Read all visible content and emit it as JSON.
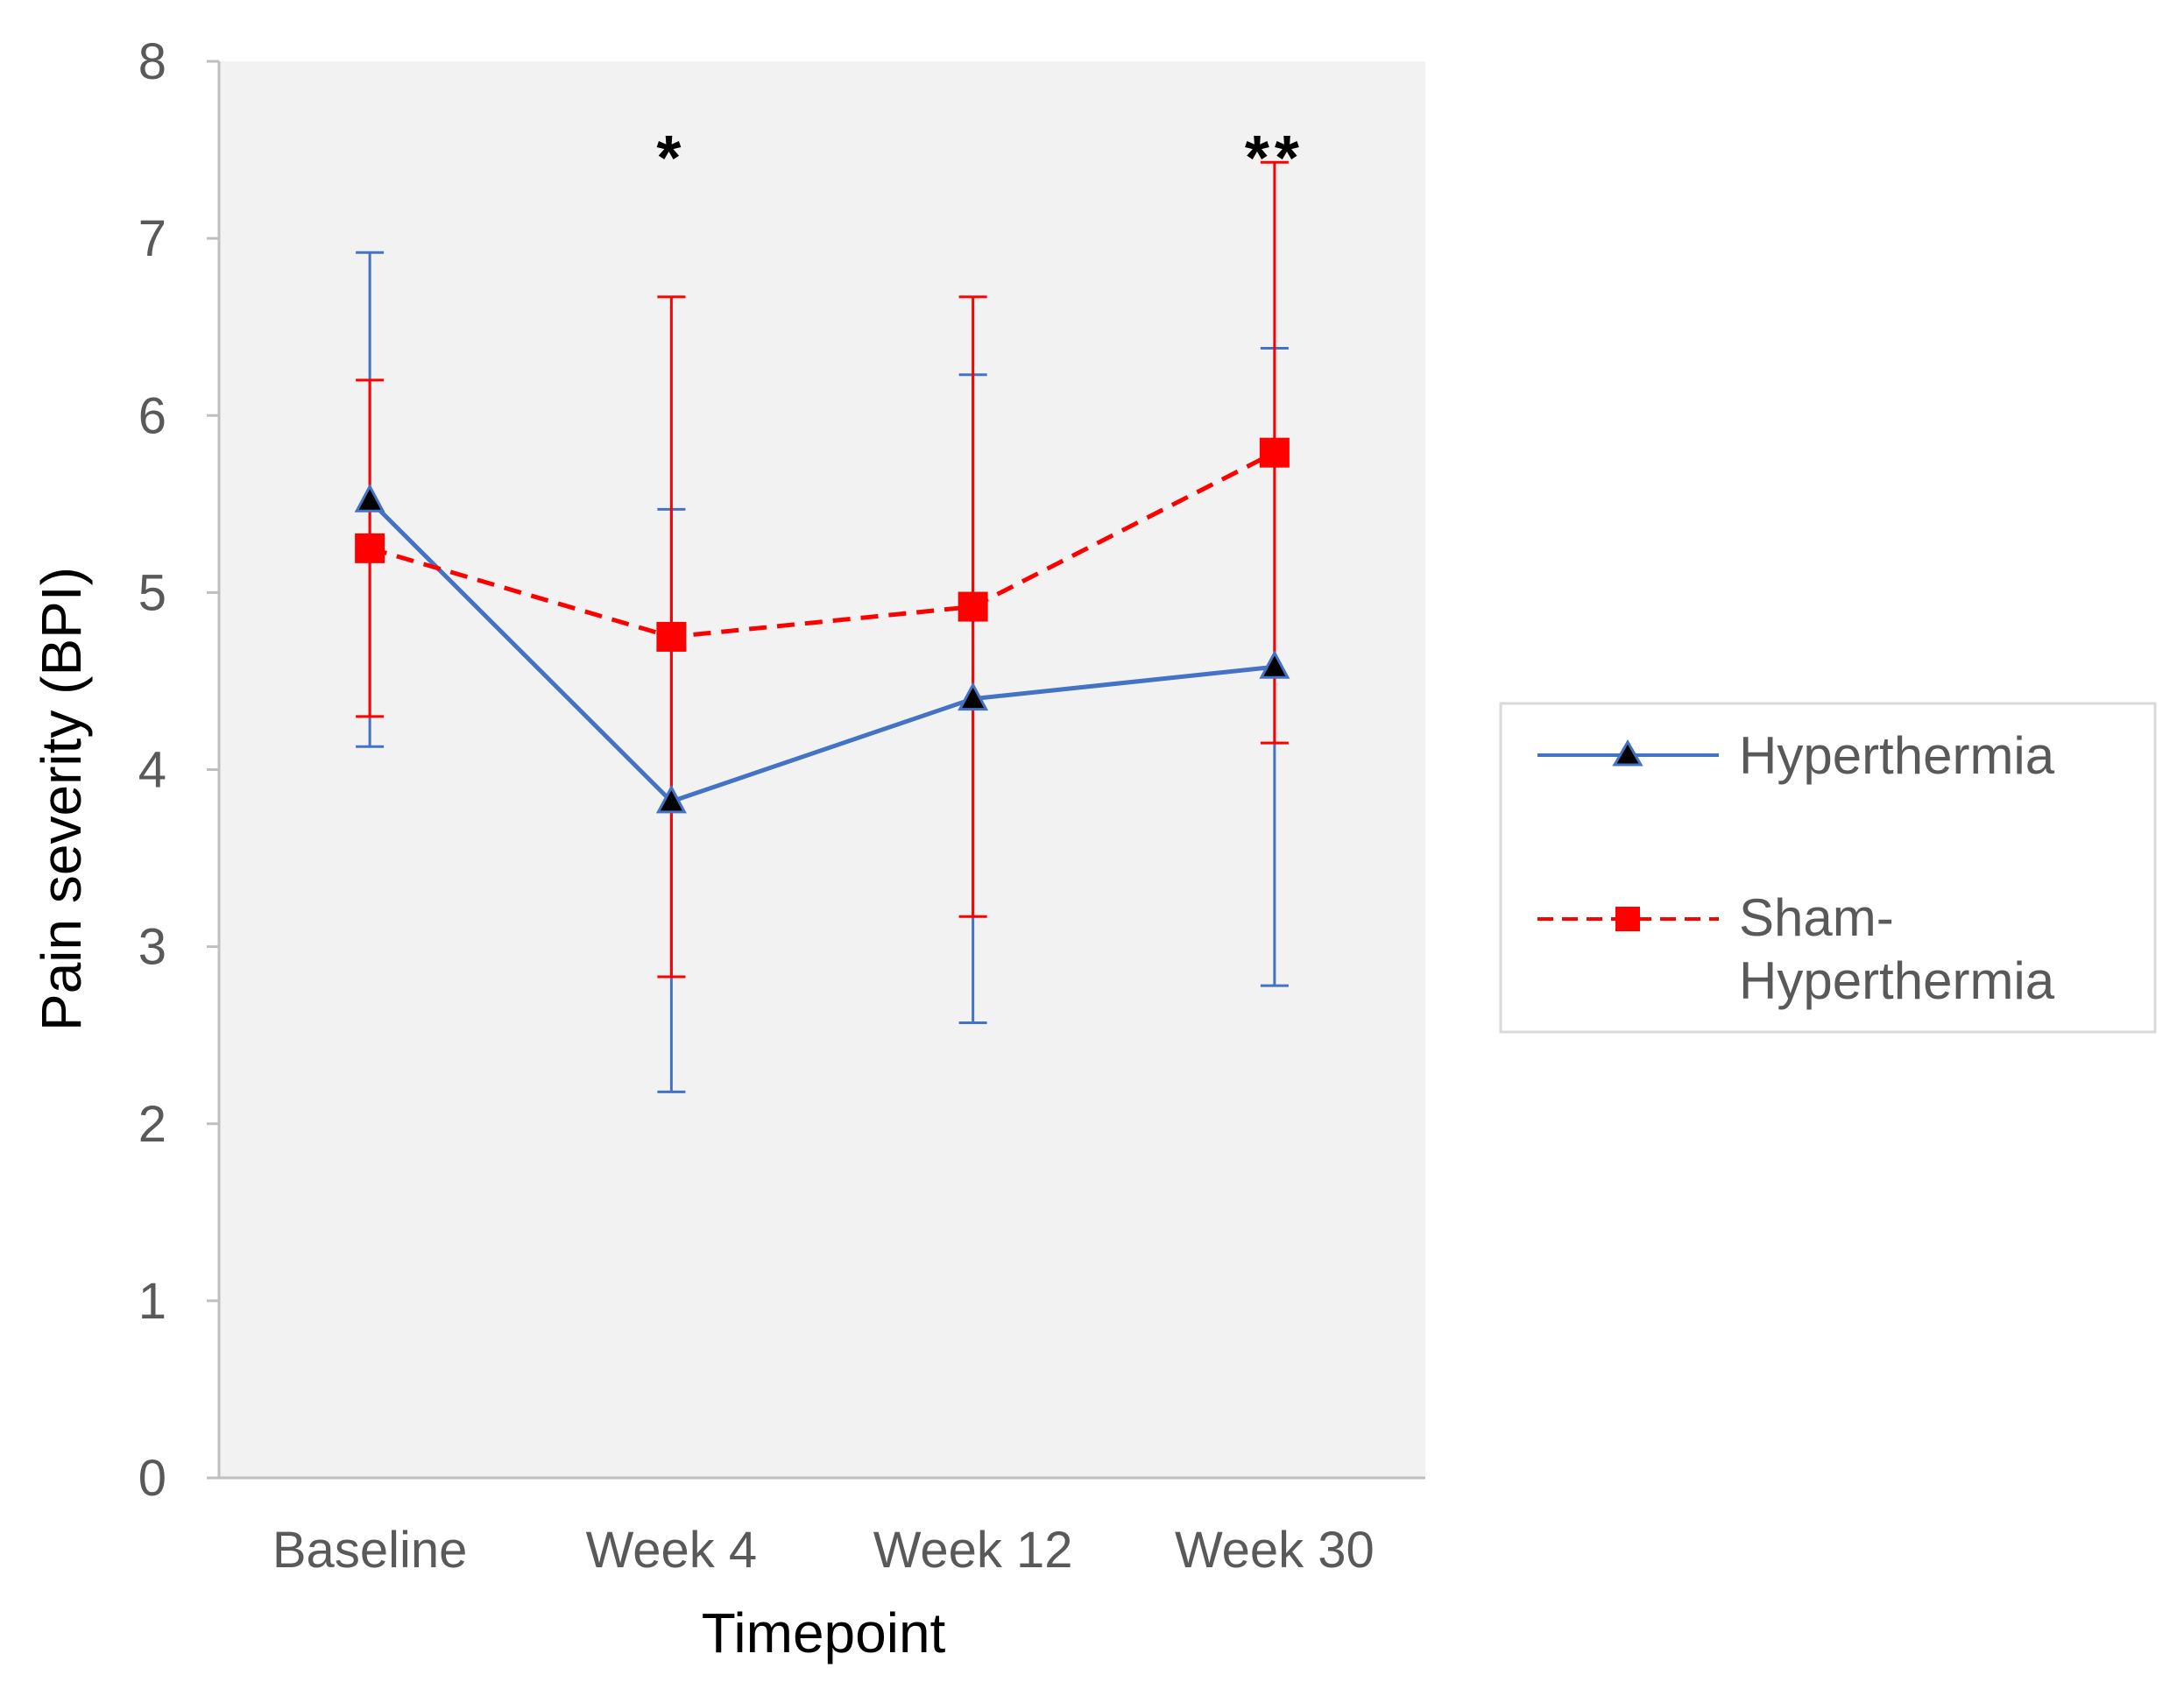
{
  "chart_data": {
    "type": "line",
    "title": "",
    "xlabel": "Timepoint",
    "ylabel": "Pain severity (BPI)",
    "categories": [
      "Baseline",
      "Week 4",
      "Week 12",
      "Week 30"
    ],
    "ylim": [
      0,
      8
    ],
    "yticks": [
      "0",
      "1",
      "2",
      "3",
      "4",
      "5",
      "6",
      "7",
      "8"
    ],
    "grid": false,
    "legend_position": "right",
    "series": [
      {
        "name": "Hyperthermia",
        "color": "#4472C4",
        "marker": "triangle",
        "line_style": "solid",
        "values": [
          5.52,
          3.82,
          4.4,
          4.58
        ],
        "error_high": [
          6.92,
          5.47,
          6.23,
          6.38
        ],
        "error_low": [
          4.13,
          2.18,
          2.57,
          2.78
        ]
      },
      {
        "name": "Sham-Hyperthermia",
        "color": "#FF0000",
        "marker": "square",
        "line_style": "dashed",
        "values": [
          5.25,
          4.75,
          4.92,
          5.79
        ],
        "error_high": [
          6.2,
          6.67,
          6.67,
          7.43
        ],
        "error_low": [
          4.3,
          2.83,
          3.17,
          4.15
        ]
      }
    ],
    "annotations": [
      {
        "category": "Week 4",
        "text": "*"
      },
      {
        "category": "Week 30",
        "text": "**"
      }
    ]
  },
  "legend": {
    "line1": "Hyperthermia",
    "line2a": "Sham-",
    "line2b": "Hyperthermia"
  }
}
